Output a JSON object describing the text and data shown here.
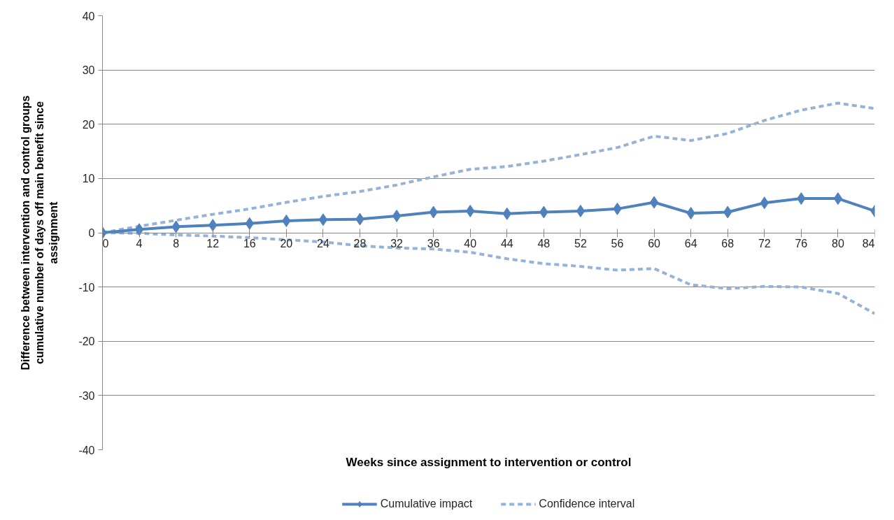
{
  "chart_data": {
    "type": "line",
    "xlabel": "Weeks since assignment to intervention or control",
    "ylabel": "Difference between intervention and control groups cumulative number of days off main benefit since assignment",
    "x": [
      0,
      4,
      8,
      12,
      16,
      20,
      24,
      28,
      32,
      36,
      40,
      44,
      48,
      52,
      56,
      60,
      64,
      68,
      72,
      76,
      80,
      84
    ],
    "xlim": [
      0,
      84
    ],
    "xticks": [
      0,
      4,
      8,
      12,
      16,
      20,
      24,
      28,
      32,
      36,
      40,
      44,
      48,
      52,
      56,
      60,
      64,
      68,
      72,
      76,
      80,
      84
    ],
    "ylim": [
      -40,
      40
    ],
    "yticks": [
      -40,
      -30,
      -20,
      -10,
      0,
      10,
      20,
      30,
      40
    ],
    "grid": "y",
    "legend": "bottom",
    "series": [
      {
        "name": "Cumulative impact",
        "color": "#4f81bd",
        "marker": "diamond",
        "line_style": "solid",
        "values": [
          0,
          0.6,
          1.1,
          1.4,
          1.7,
          2.2,
          2.4,
          2.5,
          3.1,
          3.8,
          4.0,
          3.5,
          3.8,
          4.0,
          4.4,
          5.6,
          3.6,
          3.8,
          5.5,
          6.3,
          6.3,
          4.0
        ]
      },
      {
        "name": "Confidence interval",
        "color": "#95b3d7",
        "marker": "none",
        "line_style": "dashed",
        "values": [
          0,
          1.2,
          2.3,
          3.4,
          4.4,
          5.6,
          6.7,
          7.6,
          8.8,
          10.3,
          11.7,
          12.2,
          13.2,
          14.4,
          15.7,
          17.8,
          17.0,
          18.3,
          20.7,
          22.6,
          23.9,
          22.9
        ]
      },
      {
        "color": "#95b3d7",
        "marker": "none",
        "line_style": "dashed",
        "values": [
          0,
          -0.1,
          -0.4,
          -0.6,
          -0.9,
          -1.3,
          -1.7,
          -2.4,
          -2.8,
          -3.0,
          -3.6,
          -4.8,
          -5.7,
          -6.2,
          -6.9,
          -6.6,
          -9.6,
          -10.3,
          -9.9,
          -10.0,
          -11.2,
          -14.9
        ]
      }
    ]
  }
}
